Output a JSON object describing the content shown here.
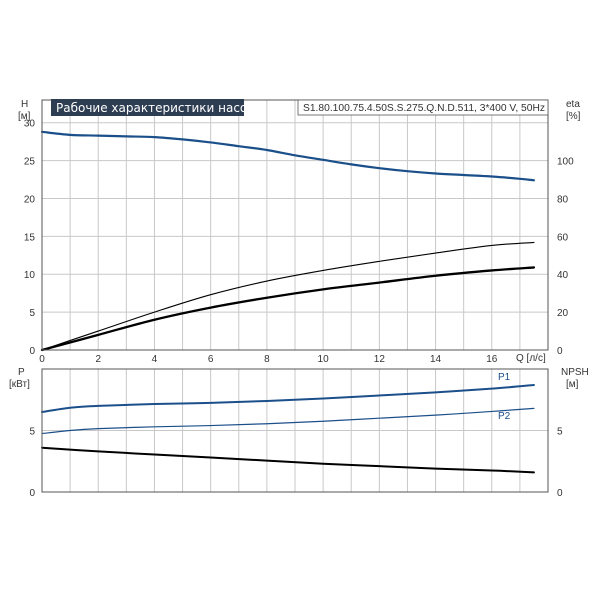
{
  "chart_data": [
    {
      "type": "line",
      "title": "Рабочие характеристики насоса",
      "subtitle": "S1.80.100.75.4.50S.S.275.Q.N.D.511, 3*400 V, 50Hz",
      "xlabel": "Q [л/с]",
      "ylabel": {
        "name": "H",
        "unit": "[м]"
      },
      "y2label": {
        "name": "eta",
        "unit": "[%]"
      },
      "xlim": [
        0,
        18
      ],
      "ylim": [
        0,
        33
      ],
      "y2lim": [
        0,
        132
      ],
      "xticks": [
        "0",
        "2",
        "4",
        "6",
        "8",
        "10",
        "12",
        "14",
        "16"
      ],
      "yticks": [
        "0",
        "5",
        "10",
        "15",
        "20",
        "25",
        "30"
      ],
      "y2ticks": [
        "0",
        "20",
        "40",
        "60",
        "80",
        "100"
      ],
      "grid": true,
      "colors": {
        "head": "#1b4f8a",
        "eta": "#000000",
        "axis": "#555555",
        "grid": "#c8c8c8"
      },
      "series": [
        {
          "axis": "left",
          "style": "head",
          "x": [
            0,
            1,
            2,
            3,
            4,
            5,
            6,
            7,
            8,
            9,
            10,
            11,
            12,
            13,
            14,
            15,
            16,
            17,
            17.5
          ],
          "y": [
            28.8,
            28.4,
            28.3,
            28.2,
            28.1,
            27.8,
            27.4,
            26.9,
            26.4,
            25.7,
            25.1,
            24.5,
            24.0,
            23.6,
            23.3,
            23.1,
            22.9,
            22.6,
            22.4
          ]
        },
        {
          "axis": "left",
          "style": "thin",
          "x": [
            0,
            2,
            4,
            6,
            8,
            10,
            12,
            14,
            16,
            17.5
          ],
          "y": [
            0,
            2.5,
            5.0,
            7.3,
            9.1,
            10.5,
            11.7,
            12.8,
            13.8,
            14.2
          ]
        },
        {
          "axis": "left",
          "style": "thick",
          "x": [
            0,
            2,
            4,
            6,
            8,
            10,
            12,
            14,
            16,
            17.5
          ],
          "y": [
            0,
            2.0,
            4.0,
            5.6,
            6.9,
            8.0,
            8.9,
            9.8,
            10.5,
            10.9
          ]
        }
      ]
    },
    {
      "type": "line",
      "ylabel": {
        "name": "P",
        "unit": "[кВт]"
      },
      "y2label": {
        "name": "NPSH",
        "unit": "[м]"
      },
      "xlim": [
        0,
        18
      ],
      "ylim": [
        0,
        10
      ],
      "y2lim": [
        0,
        10
      ],
      "yticks": [
        "0",
        "5"
      ],
      "y2ticks": [
        "0",
        "5"
      ],
      "grid": true,
      "series": [
        {
          "name": "P1",
          "axis": "left",
          "style": "p1",
          "x": [
            0,
            1,
            2,
            4,
            6,
            8,
            10,
            12,
            14,
            16,
            17.5
          ],
          "y": [
            6.5,
            6.85,
            7.0,
            7.15,
            7.25,
            7.4,
            7.6,
            7.85,
            8.1,
            8.4,
            8.7
          ]
        },
        {
          "name": "P2",
          "axis": "left",
          "style": "p2",
          "x": [
            0,
            1,
            2,
            4,
            6,
            8,
            10,
            12,
            14,
            16,
            17.5
          ],
          "y": [
            4.75,
            5.0,
            5.15,
            5.3,
            5.4,
            5.55,
            5.75,
            6.0,
            6.25,
            6.55,
            6.8
          ]
        },
        {
          "axis": "right",
          "style": "npsh",
          "x": [
            0,
            2,
            4,
            6,
            8,
            10,
            12,
            14,
            16,
            17.5
          ],
          "y": [
            3.6,
            3.3,
            3.05,
            2.8,
            2.55,
            2.3,
            2.1,
            1.9,
            1.75,
            1.6
          ]
        }
      ]
    }
  ]
}
